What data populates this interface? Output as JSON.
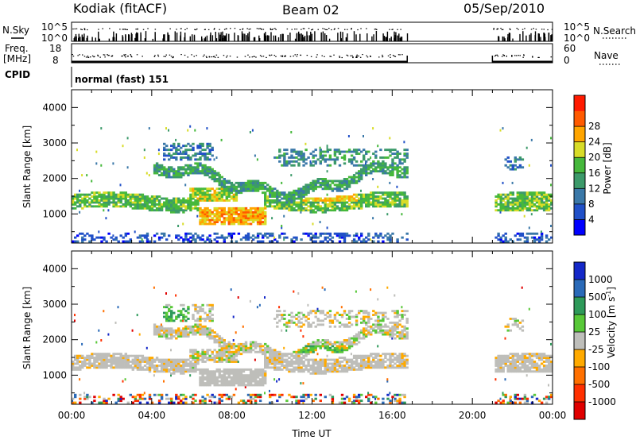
{
  "header": {
    "station": "Kodiak (fitACF)",
    "beam": "Beam 02",
    "date": "05/Sep/2010"
  },
  "status_panels": {
    "nsky_label": "N.Sky",
    "nsky_ticks": [
      "10^5",
      "10^0"
    ],
    "nsearch_label": "N.Search",
    "nsearch_ticks": [
      "10^5",
      "10^0"
    ],
    "freq_label": "Freq.",
    "freq_unit": "[MHz]",
    "freq_ticks": [
      "18",
      "8"
    ],
    "nave_label": "Nave",
    "nave_ticks": [
      "60",
      "0"
    ],
    "cpid_label": "CPID",
    "cpid_value": "normal (fast) 151"
  },
  "chart_data": [
    {
      "type": "heatmap",
      "name": "power",
      "ylabel": "Slant Range [km]",
      "xlabel": "",
      "xlim": [
        0,
        24
      ],
      "ylim": [
        180,
        4500
      ],
      "yticks": [
        "1000",
        "2000",
        "3000",
        "4000"
      ],
      "colorbar_label": "Power [dB]",
      "colorbar_ticks": [
        "4",
        "8",
        "12",
        "16",
        "20",
        "24",
        "28"
      ],
      "colorbar_colors": [
        "#0000ff",
        "#2050c8",
        "#3a78a8",
        "#3c9a6a",
        "#46b83c",
        "#d8dc28",
        "#ffa500",
        "#ff5a00",
        "#ff1a00"
      ],
      "data_gap_hours": [
        16.75,
        21.0
      ],
      "features": [
        {
          "time": [
            0.0,
            16.7
          ],
          "range_km": [
            1100,
            1500
          ],
          "level_db": 20
        },
        {
          "time": [
            6.3,
            9.5
          ],
          "range_km": [
            700,
            1100
          ],
          "level_db": 28
        },
        {
          "time": [
            11.5,
            14.2
          ],
          "range_km": [
            1400,
            1700
          ],
          "level_db": 24
        },
        {
          "time": [
            21.0,
            24.0
          ],
          "range_km": [
            1100,
            1500
          ],
          "level_db": 18
        }
      ]
    },
    {
      "type": "heatmap",
      "name": "velocity",
      "ylabel": "Slant Range [km]",
      "xlabel": "Time UT",
      "xlim": [
        0,
        24
      ],
      "ylim": [
        180,
        4500
      ],
      "xticks": [
        "00:00",
        "04:00",
        "08:00",
        "12:00",
        "16:00",
        "20:00",
        "00:00"
      ],
      "yticks": [
        "1000",
        "2000",
        "3000",
        "4000"
      ],
      "colorbar_label": "Velocity [m s",
      "colorbar_unit_sup": "-1",
      "colorbar_ticks": [
        "1000",
        "500",
        "100",
        "25",
        "-25",
        "-100",
        "-500",
        "-1000"
      ],
      "colorbar_colors": [
        "#1428c8",
        "#2a6ab8",
        "#2e9a5a",
        "#58c838",
        "#bebeba",
        "#ffaa00",
        "#ff7000",
        "#ff3000",
        "#e00000"
      ],
      "data_gap_hours": [
        16.75,
        21.0
      ]
    }
  ]
}
